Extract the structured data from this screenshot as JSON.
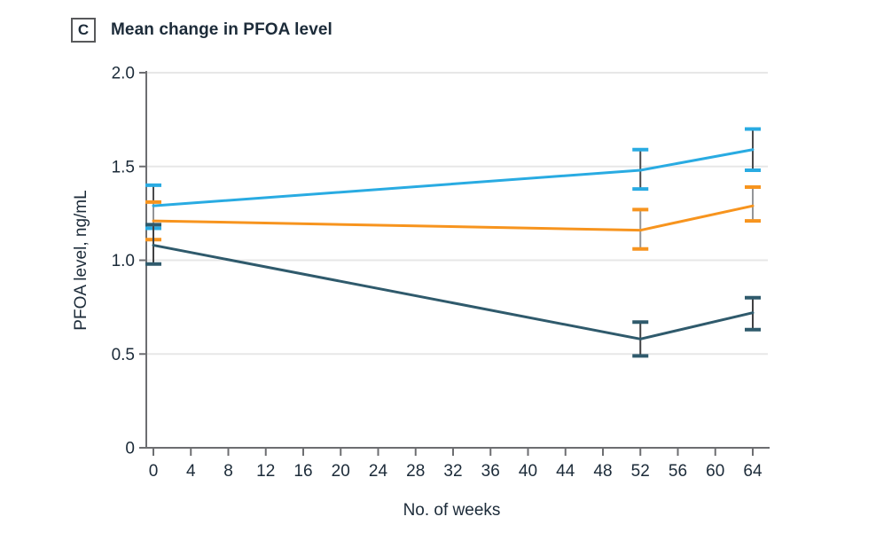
{
  "panel": {
    "label": "C",
    "title": "Mean change in PFOA level"
  },
  "chart_data": {
    "type": "line",
    "title": "Mean change in PFOA level",
    "xlabel": "No. of weeks",
    "ylabel": "PFOA level, ng/mL",
    "xlim": [
      0,
      64
    ],
    "ylim": [
      0,
      2.0
    ],
    "x_ticks": [
      0,
      4,
      8,
      12,
      16,
      20,
      24,
      28,
      32,
      36,
      40,
      44,
      48,
      52,
      56,
      60,
      64
    ],
    "y_ticks": [
      "0",
      "0.5",
      "1.0",
      "1.5",
      "2.0"
    ],
    "y_tick_values": [
      0,
      0.5,
      1.0,
      1.5,
      2.0
    ],
    "grid": "horizontal",
    "legend_position": "none",
    "x": [
      0,
      52,
      64
    ],
    "series": [
      {
        "name": "light-blue",
        "color": "#29ABE2",
        "stem_color": "#4A4A4C",
        "values": [
          1.29,
          1.48,
          1.59
        ],
        "err_low": [
          1.17,
          1.38,
          1.48
        ],
        "err_high": [
          1.4,
          1.59,
          1.7
        ]
      },
      {
        "name": "orange",
        "color": "#F7941E",
        "stem_color": "#939598",
        "values": [
          1.21,
          1.16,
          1.29
        ],
        "err_low": [
          1.11,
          1.06,
          1.21
        ],
        "err_high": [
          1.31,
          1.27,
          1.39
        ]
      },
      {
        "name": "dark-teal",
        "color": "#2F5A6C",
        "stem_color": "#414042",
        "values": [
          1.08,
          0.58,
          0.72
        ],
        "err_low": [
          0.98,
          0.49,
          0.63
        ],
        "err_high": [
          1.19,
          0.67,
          0.8
        ]
      }
    ],
    "colors": {
      "grid": "#E7E7E7",
      "axis": "#6D6E71",
      "text": "#1C2B39"
    }
  }
}
